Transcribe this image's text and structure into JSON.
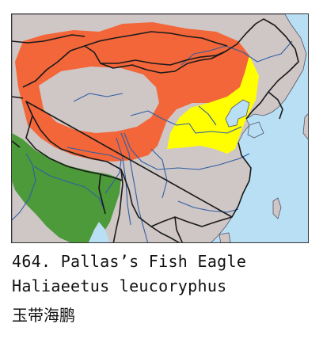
{
  "caption": {
    "number": "464.",
    "english_name": "Pallas’s Fish Eagle",
    "scientific_name": "Haliaeetus leucoryphus",
    "chinese_name": "玉带海鹏"
  },
  "legend_colors": {
    "breeding_range": "#f2663a",
    "passage_range": "#ffff00",
    "resident_range": "#4c9a3a",
    "land": "#cfc6c6",
    "sea": "#b9dff4",
    "rivers": "#2f5fa3",
    "borders": "#1a1a1a"
  }
}
